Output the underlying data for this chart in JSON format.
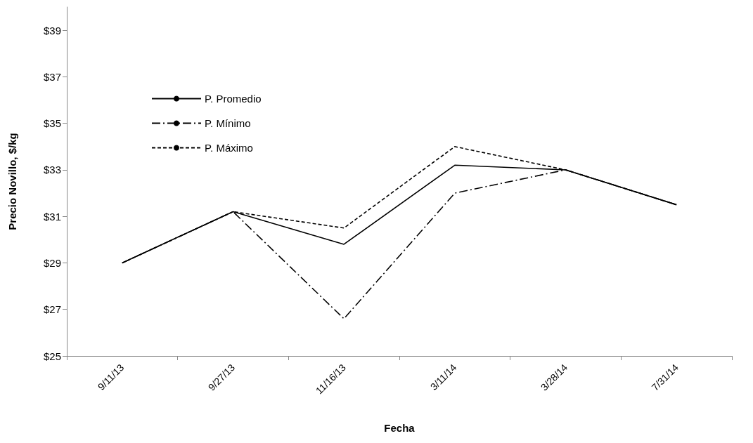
{
  "chart_data": {
    "type": "line",
    "xlabel": "Fecha",
    "ylabel": "Precio Novillo, $/kg",
    "categories": [
      "9/11/13",
      "9/27/13",
      "11/16/13",
      "3/11/14",
      "3/28/14",
      "7/31/14"
    ],
    "series": [
      {
        "name": "P. Promedio",
        "color": "#000000",
        "line_style": "solid",
        "values": [
          29.0,
          31.2,
          29.8,
          33.2,
          33.0,
          31.5
        ]
      },
      {
        "name": "P. Mínimo",
        "color": "#000000",
        "line_style": "dashdot",
        "values": [
          29.0,
          31.2,
          26.6,
          32.0,
          33.0,
          31.5
        ]
      },
      {
        "name": "P. Máximo",
        "color": "#000000",
        "line_style": "dashed",
        "values": [
          29.0,
          31.2,
          30.5,
          34.0,
          33.0,
          31.5
        ]
      }
    ],
    "ylim": [
      25,
      40
    ],
    "yticks": [
      {
        "value": 25,
        "label": "$25"
      },
      {
        "value": 27,
        "label": "$27"
      },
      {
        "value": 29,
        "label": "$29"
      },
      {
        "value": 31,
        "label": "$31"
      },
      {
        "value": 33,
        "label": "$33"
      },
      {
        "value": 35,
        "label": "$35"
      },
      {
        "value": 37,
        "label": "$37"
      },
      {
        "value": 39,
        "label": "$39"
      }
    ],
    "grid": false,
    "legend": "top left",
    "marker": "none"
  }
}
